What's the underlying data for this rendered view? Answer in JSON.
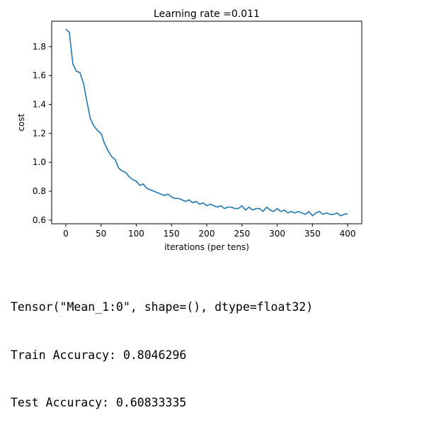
{
  "chart_data": {
    "type": "line",
    "title": "Learning rate =0.011",
    "xlabel": "iterations (per tens)",
    "ylabel": "cost",
    "xlim": [
      -20,
      420
    ],
    "ylim": [
      0.575,
      1.975
    ],
    "xticks": [
      0,
      50,
      100,
      150,
      200,
      250,
      300,
      350,
      400
    ],
    "yticks": [
      0.6,
      0.8,
      1.0,
      1.2,
      1.4,
      1.6,
      1.8
    ],
    "ytick_labels": [
      "0.6",
      "0.8",
      "1.0",
      "1.2",
      "1.4",
      "1.6",
      "1.8"
    ],
    "line_color": "#1f77b4",
    "series": [
      {
        "name": "cost",
        "x": [
          0,
          5,
          10,
          15,
          20,
          25,
          30,
          35,
          40,
          45,
          50,
          55,
          60,
          65,
          70,
          75,
          80,
          85,
          90,
          95,
          100,
          105,
          110,
          115,
          120,
          125,
          130,
          135,
          140,
          145,
          150,
          155,
          160,
          165,
          170,
          175,
          180,
          185,
          190,
          195,
          200,
          205,
          210,
          215,
          220,
          225,
          230,
          235,
          240,
          245,
          250,
          255,
          260,
          265,
          270,
          275,
          280,
          285,
          290,
          295,
          300,
          305,
          310,
          315,
          320,
          325,
          330,
          335,
          340,
          345,
          350,
          355,
          360,
          365,
          370,
          375,
          380,
          385,
          390,
          395,
          400
        ],
        "values": [
          1.92,
          1.9,
          1.68,
          1.63,
          1.62,
          1.55,
          1.42,
          1.3,
          1.25,
          1.22,
          1.2,
          1.13,
          1.08,
          1.04,
          1.02,
          0.96,
          0.94,
          0.93,
          0.9,
          0.88,
          0.87,
          0.84,
          0.85,
          0.82,
          0.81,
          0.8,
          0.79,
          0.78,
          0.77,
          0.78,
          0.76,
          0.75,
          0.75,
          0.74,
          0.73,
          0.74,
          0.72,
          0.73,
          0.71,
          0.72,
          0.7,
          0.71,
          0.7,
          0.69,
          0.7,
          0.68,
          0.69,
          0.69,
          0.68,
          0.68,
          0.7,
          0.67,
          0.69,
          0.67,
          0.68,
          0.68,
          0.66,
          0.69,
          0.67,
          0.66,
          0.68,
          0.66,
          0.67,
          0.65,
          0.66,
          0.65,
          0.66,
          0.65,
          0.64,
          0.66,
          0.63,
          0.65,
          0.66,
          0.64,
          0.65,
          0.64,
          0.64,
          0.65,
          0.63,
          0.64,
          0.645
        ]
      }
    ]
  },
  "output_lines": [
    "Tensor(\"Mean_1:0\", shape=(), dtype=float32)",
    "Train Accuracy: 0.8046296",
    "Test Accuracy: 0.60833335"
  ]
}
